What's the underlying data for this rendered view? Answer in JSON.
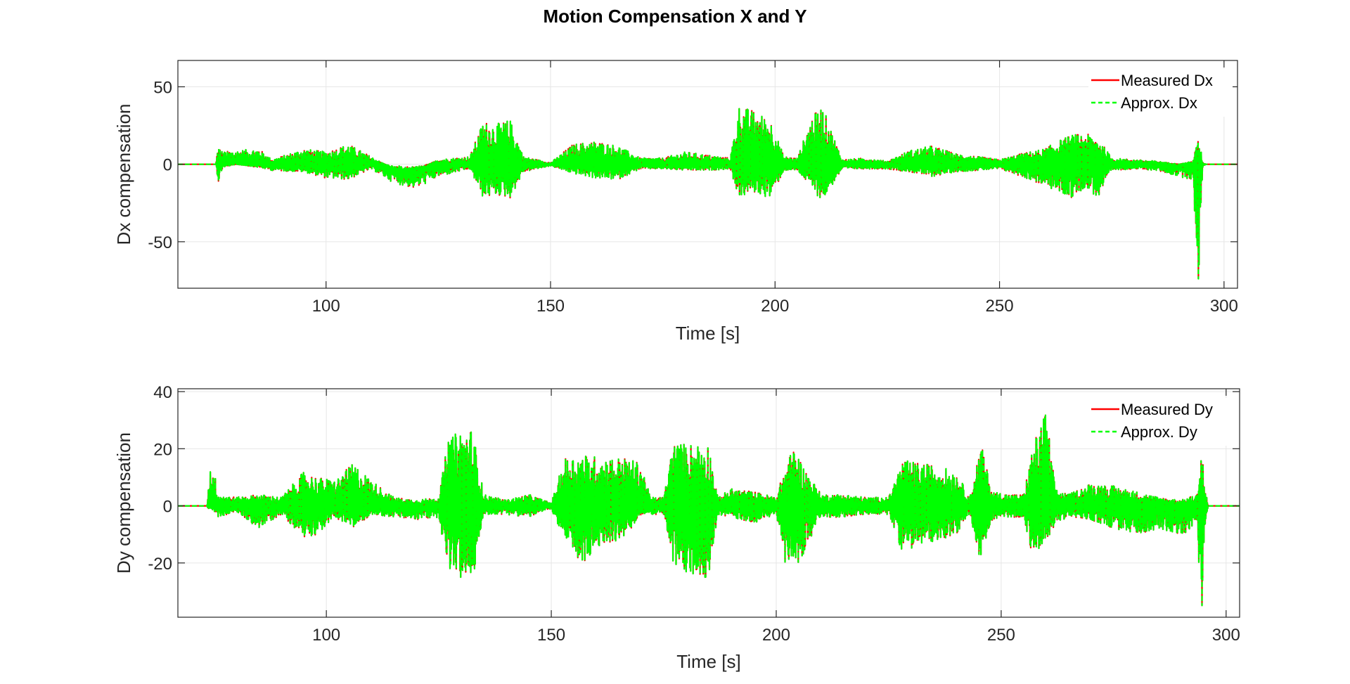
{
  "figure": {
    "title": "Motion Compensation X and Y"
  },
  "chart_data": [
    {
      "type": "line",
      "title": "",
      "xlabel": "Time [s]",
      "ylabel": "Dx compensation",
      "xlim": [
        67,
        303
      ],
      "ylim": [
        -80,
        67
      ],
      "xticks": [
        100,
        150,
        200,
        250,
        300
      ],
      "yticks": [
        -50,
        0,
        50
      ],
      "grid": true,
      "legend_position": "top-right",
      "series": [
        {
          "name": "Measured Dx",
          "color": "#ff0000",
          "style": "solid"
        },
        {
          "name": "Approx. Dx",
          "color": "#00ff00",
          "style": "dashed"
        }
      ],
      "envelope": {
        "t": [
          67,
          75.5,
          75.6,
          76,
          77,
          80,
          85,
          88,
          95,
          100,
          105,
          110,
          115,
          120,
          125,
          132,
          135,
          138,
          141,
          144,
          150,
          155,
          160,
          165,
          170,
          175,
          180,
          185,
          190,
          192,
          195,
          199,
          202,
          205,
          208,
          210.5,
          215,
          220,
          225,
          230,
          235,
          240,
          245,
          250,
          255,
          260,
          263,
          266,
          269,
          272,
          275,
          280,
          285,
          290,
          293,
          294.3,
          294.8,
          295.3,
          296,
          303
        ],
        "max": [
          0,
          0,
          5,
          12,
          8,
          9,
          10,
          3,
          10,
          8,
          13,
          5,
          -3,
          -4,
          3,
          5,
          28,
          26,
          29,
          5,
          1,
          13,
          15,
          12,
          4,
          4,
          8,
          6,
          4,
          38,
          35,
          29,
          5,
          4,
          30,
          38,
          3,
          4,
          2,
          9,
          12,
          7,
          5,
          3,
          7,
          10,
          15,
          19,
          20,
          17,
          4,
          3,
          2,
          0,
          2,
          17,
          10,
          1,
          0,
          0
        ],
        "min": [
          0,
          0,
          -3,
          -12,
          -2,
          0,
          -2,
          -4,
          -5,
          -9,
          -10,
          -3,
          -12,
          -16,
          -8,
          -3,
          -22,
          -20,
          -22,
          -5,
          -1,
          -6,
          -9,
          -10,
          -3,
          -3,
          -4,
          -4,
          -3,
          -22,
          -18,
          -22,
          -4,
          -4,
          -15,
          -24,
          -3,
          -3,
          -3,
          -5,
          -8,
          -5,
          -4,
          -3,
          -8,
          -14,
          -18,
          -22,
          -15,
          -22,
          -4,
          -3,
          -4,
          -8,
          -10,
          -80,
          -30,
          -1,
          0,
          0
        ]
      }
    },
    {
      "type": "line",
      "title": "",
      "xlabel": "Time [s]",
      "ylabel": "Dy compensation",
      "xlim": [
        67,
        303
      ],
      "ylim": [
        -39,
        41
      ],
      "xticks": [
        100,
        150,
        200,
        250,
        300
      ],
      "yticks": [
        -20,
        0,
        20,
        40
      ],
      "grid": true,
      "legend_position": "top-right",
      "series": [
        {
          "name": "Measured Dy",
          "color": "#ff0000",
          "style": "solid"
        },
        {
          "name": "Approx. Dy",
          "color": "#00ff00",
          "style": "dashed"
        }
      ],
      "envelope": {
        "t": [
          67,
          73.5,
          73.6,
          74.5,
          76,
          80,
          85,
          90,
          95,
          98,
          102,
          106,
          110,
          115,
          120,
          125,
          127,
          130,
          132.5,
          135,
          140,
          145,
          150,
          153,
          157,
          162,
          166,
          170,
          172,
          175,
          177,
          181,
          185,
          187,
          190,
          195,
          200,
          202,
          204,
          206,
          210,
          215,
          220,
          225,
          228,
          232,
          236,
          240,
          243,
          245.5,
          248,
          252,
          255,
          257,
          260,
          262,
          265,
          270,
          275,
          280,
          285,
          290,
          293.5,
          294.6,
          295.2,
          296,
          303
        ],
        "max": [
          0,
          0,
          5,
          17,
          4,
          3,
          4,
          3,
          12,
          10,
          9,
          15,
          9,
          3,
          2,
          3,
          23,
          27,
          27,
          4,
          2,
          4,
          1,
          17,
          18,
          17,
          17,
          15,
          3,
          3,
          22,
          22,
          22,
          3,
          6,
          5,
          3,
          14,
          21,
          14,
          4,
          4,
          3,
          3,
          16,
          15,
          14,
          12,
          3,
          22,
          5,
          4,
          4,
          21,
          34,
          6,
          4,
          8,
          7,
          5,
          3,
          2,
          4,
          22,
          8,
          0,
          0
        ],
        "min": [
          0,
          0,
          -1,
          -1,
          -4,
          -2,
          -8,
          -3,
          -11,
          -10,
          -4,
          -8,
          -3,
          -4,
          -5,
          -4,
          -22,
          -26,
          -27,
          -3,
          -3,
          -4,
          -1,
          -13,
          -21,
          -13,
          -12,
          -3,
          -3,
          -3,
          -21,
          -25,
          -25,
          -3,
          -4,
          -6,
          -3,
          -20,
          -22,
          -17,
          -4,
          -4,
          -3,
          -3,
          -16,
          -14,
          -12,
          -10,
          -3,
          -20,
          -5,
          -4,
          -4,
          -18,
          -14,
          -6,
          -4,
          -5,
          -8,
          -10,
          -8,
          -10,
          -8,
          -39,
          -10,
          0,
          0
        ]
      }
    }
  ]
}
